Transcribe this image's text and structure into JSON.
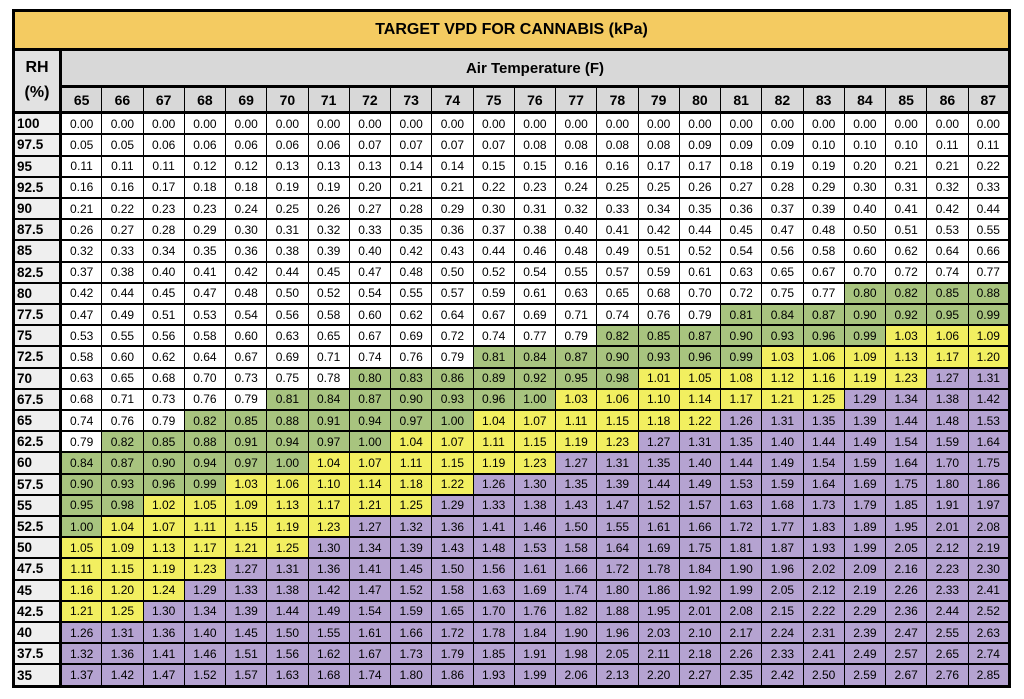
{
  "title": "TARGET VPD FOR CANNABIS (kPa)",
  "rh_header": {
    "line1": "RH",
    "line2": "(%)"
  },
  "col_header": "Air Temperature (F)",
  "colors": {
    "title_bg": "#F4CB61",
    "header_bg": "#D8D8D8",
    "rh_head_bg": "#E2E2E2",
    "rh_col_bg": "#EFEFEF",
    "border": "#000000",
    "text": "#000000",
    "page_bg": "#FFFFFF"
  },
  "chart_data": {
    "type": "heatmap",
    "title": "TARGET VPD FOR CANNABIS (kPa)",
    "xlabel": "Air Temperature (F)",
    "ylabel": "RH (%)",
    "x": [
      65,
      66,
      67,
      68,
      69,
      70,
      71,
      72,
      73,
      74,
      75,
      76,
      77,
      78,
      79,
      80,
      81,
      82,
      83,
      84,
      85,
      86,
      87
    ],
    "color_key": {
      "w": "#FFFFFF",
      "g": "#A8C47F",
      "y": "#F2EF60",
      "p": "#B5A3D1"
    },
    "rows": [
      {
        "rh": "100",
        "values": [
          "0.00",
          "0.00",
          "0.00",
          "0.00",
          "0.00",
          "0.00",
          "0.00",
          "0.00",
          "0.00",
          "0.00",
          "0.00",
          "0.00",
          "0.00",
          "0.00",
          "0.00",
          "0.00",
          "0.00",
          "0.00",
          "0.00",
          "0.00",
          "0.00",
          "0.00",
          "0.00"
        ],
        "colors": "wwwwwwwwwwwwwwwwwwwwwww"
      },
      {
        "rh": "97.5",
        "values": [
          "0.05",
          "0.05",
          "0.06",
          "0.06",
          "0.06",
          "0.06",
          "0.06",
          "0.07",
          "0.07",
          "0.07",
          "0.07",
          "0.08",
          "0.08",
          "0.08",
          "0.08",
          "0.09",
          "0.09",
          "0.09",
          "0.10",
          "0.10",
          "0.10",
          "0.11",
          "0.11"
        ],
        "colors": "wwwwwwwwwwwwwwwwwwwwwww"
      },
      {
        "rh": "95",
        "values": [
          "0.11",
          "0.11",
          "0.11",
          "0.12",
          "0.12",
          "0.13",
          "0.13",
          "0.13",
          "0.14",
          "0.14",
          "0.15",
          "0.15",
          "0.16",
          "0.16",
          "0.17",
          "0.17",
          "0.18",
          "0.19",
          "0.19",
          "0.20",
          "0.21",
          "0.21",
          "0.22"
        ],
        "colors": "wwwwwwwwwwwwwwwwwwwwwww"
      },
      {
        "rh": "92.5",
        "values": [
          "0.16",
          "0.16",
          "0.17",
          "0.18",
          "0.18",
          "0.19",
          "0.19",
          "0.20",
          "0.21",
          "0.21",
          "0.22",
          "0.23",
          "0.24",
          "0.25",
          "0.25",
          "0.26",
          "0.27",
          "0.28",
          "0.29",
          "0.30",
          "0.31",
          "0.32",
          "0.33"
        ],
        "colors": "wwwwwwwwwwwwwwwwwwwwwww"
      },
      {
        "rh": "90",
        "values": [
          "0.21",
          "0.22",
          "0.23",
          "0.23",
          "0.24",
          "0.25",
          "0.26",
          "0.27",
          "0.28",
          "0.29",
          "0.30",
          "0.31",
          "0.32",
          "0.33",
          "0.34",
          "0.35",
          "0.36",
          "0.37",
          "0.39",
          "0.40",
          "0.41",
          "0.42",
          "0.44"
        ],
        "colors": "wwwwwwwwwwwwwwwwwwwwwww"
      },
      {
        "rh": "87.5",
        "values": [
          "0.26",
          "0.27",
          "0.28",
          "0.29",
          "0.30",
          "0.31",
          "0.32",
          "0.33",
          "0.35",
          "0.36",
          "0.37",
          "0.38",
          "0.40",
          "0.41",
          "0.42",
          "0.44",
          "0.45",
          "0.47",
          "0.48",
          "0.50",
          "0.51",
          "0.53",
          "0.55"
        ],
        "colors": "wwwwwwwwwwwwwwwwwwwwwww"
      },
      {
        "rh": "85",
        "values": [
          "0.32",
          "0.33",
          "0.34",
          "0.35",
          "0.36",
          "0.38",
          "0.39",
          "0.40",
          "0.42",
          "0.43",
          "0.44",
          "0.46",
          "0.48",
          "0.49",
          "0.51",
          "0.52",
          "0.54",
          "0.56",
          "0.58",
          "0.60",
          "0.62",
          "0.64",
          "0.66"
        ],
        "colors": "wwwwwwwwwwwwwwwwwwwwwww"
      },
      {
        "rh": "82.5",
        "values": [
          "0.37",
          "0.38",
          "0.40",
          "0.41",
          "0.42",
          "0.44",
          "0.45",
          "0.47",
          "0.48",
          "0.50",
          "0.52",
          "0.54",
          "0.55",
          "0.57",
          "0.59",
          "0.61",
          "0.63",
          "0.65",
          "0.67",
          "0.70",
          "0.72",
          "0.74",
          "0.77"
        ],
        "colors": "wwwwwwwwwwwwwwwwwwwwwww"
      },
      {
        "rh": "80",
        "values": [
          "0.42",
          "0.44",
          "0.45",
          "0.47",
          "0.48",
          "0.50",
          "0.52",
          "0.54",
          "0.55",
          "0.57",
          "0.59",
          "0.61",
          "0.63",
          "0.65",
          "0.68",
          "0.70",
          "0.72",
          "0.75",
          "0.77",
          "0.80",
          "0.82",
          "0.85",
          "0.88"
        ],
        "colors": "wwwwwwwwwwwwwwwwwwwgggg"
      },
      {
        "rh": "77.5",
        "values": [
          "0.47",
          "0.49",
          "0.51",
          "0.53",
          "0.54",
          "0.56",
          "0.58",
          "0.60",
          "0.62",
          "0.64",
          "0.67",
          "0.69",
          "0.71",
          "0.74",
          "0.76",
          "0.79",
          "0.81",
          "0.84",
          "0.87",
          "0.90",
          "0.92",
          "0.95",
          "0.99"
        ],
        "colors": "wwwwwwwwwwwwwwwwggggggg"
      },
      {
        "rh": "75",
        "values": [
          "0.53",
          "0.55",
          "0.56",
          "0.58",
          "0.60",
          "0.63",
          "0.65",
          "0.67",
          "0.69",
          "0.72",
          "0.74",
          "0.77",
          "0.79",
          "0.82",
          "0.85",
          "0.87",
          "0.90",
          "0.93",
          "0.96",
          "0.99",
          "1.03",
          "1.06",
          "1.09"
        ],
        "colors": "wwwwwwwwwwwwwgggggggyyy"
      },
      {
        "rh": "72.5",
        "values": [
          "0.58",
          "0.60",
          "0.62",
          "0.64",
          "0.67",
          "0.69",
          "0.71",
          "0.74",
          "0.76",
          "0.79",
          "0.81",
          "0.84",
          "0.87",
          "0.90",
          "0.93",
          "0.96",
          "0.99",
          "1.03",
          "1.06",
          "1.09",
          "1.13",
          "1.17",
          "1.20"
        ],
        "colors": "wwwwwwwwwwgggggggyyyyyy"
      },
      {
        "rh": "70",
        "values": [
          "0.63",
          "0.65",
          "0.68",
          "0.70",
          "0.73",
          "0.75",
          "0.78",
          "0.80",
          "0.83",
          "0.86",
          "0.89",
          "0.92",
          "0.95",
          "0.98",
          "1.01",
          "1.05",
          "1.08",
          "1.12",
          "1.16",
          "1.19",
          "1.23",
          "1.27",
          "1.31"
        ],
        "colors": "wwwwwwwgggggggyyyyyyypp"
      },
      {
        "rh": "67.5",
        "values": [
          "0.68",
          "0.71",
          "0.73",
          "0.76",
          "0.79",
          "0.81",
          "0.84",
          "0.87",
          "0.90",
          "0.93",
          "0.96",
          "1.00",
          "1.03",
          "1.06",
          "1.10",
          "1.14",
          "1.17",
          "1.21",
          "1.25",
          "1.29",
          "1.34",
          "1.38",
          "1.42"
        ],
        "colors": "wwwwwgggggggyyyyyyypppp"
      },
      {
        "rh": "65",
        "values": [
          "0.74",
          "0.76",
          "0.79",
          "0.82",
          "0.85",
          "0.88",
          "0.91",
          "0.94",
          "0.97",
          "1.00",
          "1.04",
          "1.07",
          "1.11",
          "1.15",
          "1.18",
          "1.22",
          "1.26",
          "1.31",
          "1.35",
          "1.39",
          "1.44",
          "1.48",
          "1.53"
        ],
        "colors": "wwwgggggggyyyyyyppppppp"
      },
      {
        "rh": "62.5",
        "values": [
          "0.79",
          "0.82",
          "0.85",
          "0.88",
          "0.91",
          "0.94",
          "0.97",
          "1.00",
          "1.04",
          "1.07",
          "1.11",
          "1.15",
          "1.19",
          "1.23",
          "1.27",
          "1.31",
          "1.35",
          "1.40",
          "1.44",
          "1.49",
          "1.54",
          "1.59",
          "1.64"
        ],
        "colors": "wgggggggyyyyyyppppppppp"
      },
      {
        "rh": "60",
        "values": [
          "0.84",
          "0.87",
          "0.90",
          "0.94",
          "0.97",
          "1.00",
          "1.04",
          "1.07",
          "1.11",
          "1.15",
          "1.19",
          "1.23",
          "1.27",
          "1.31",
          "1.35",
          "1.40",
          "1.44",
          "1.49",
          "1.54",
          "1.59",
          "1.64",
          "1.70",
          "1.75"
        ],
        "colors": "ggggggyyyyyyppppppppppp"
      },
      {
        "rh": "57.5",
        "values": [
          "0.90",
          "0.93",
          "0.96",
          "0.99",
          "1.03",
          "1.06",
          "1.10",
          "1.14",
          "1.18",
          "1.22",
          "1.26",
          "1.30",
          "1.35",
          "1.39",
          "1.44",
          "1.49",
          "1.53",
          "1.59",
          "1.64",
          "1.69",
          "1.75",
          "1.80",
          "1.86"
        ],
        "colors": "ggggyyyyyyppppppppppppp"
      },
      {
        "rh": "55",
        "values": [
          "0.95",
          "0.98",
          "1.02",
          "1.05",
          "1.09",
          "1.13",
          "1.17",
          "1.21",
          "1.25",
          "1.29",
          "1.33",
          "1.38",
          "1.43",
          "1.47",
          "1.52",
          "1.57",
          "1.63",
          "1.68",
          "1.73",
          "1.79",
          "1.85",
          "1.91",
          "1.97"
        ],
        "colors": "ggyyyyyyypppppppppppppp"
      },
      {
        "rh": "52.5",
        "values": [
          "1.00",
          "1.04",
          "1.07",
          "1.11",
          "1.15",
          "1.19",
          "1.23",
          "1.27",
          "1.32",
          "1.36",
          "1.41",
          "1.46",
          "1.50",
          "1.55",
          "1.61",
          "1.66",
          "1.72",
          "1.77",
          "1.83",
          "1.89",
          "1.95",
          "2.01",
          "2.08"
        ],
        "colors": "gyyyyyypppppppppppppppp"
      },
      {
        "rh": "50",
        "values": [
          "1.05",
          "1.09",
          "1.13",
          "1.17",
          "1.21",
          "1.25",
          "1.30",
          "1.34",
          "1.39",
          "1.43",
          "1.48",
          "1.53",
          "1.58",
          "1.64",
          "1.69",
          "1.75",
          "1.81",
          "1.87",
          "1.93",
          "1.99",
          "2.05",
          "2.12",
          "2.19"
        ],
        "colors": "yyyyyyppppppppppppppppp"
      },
      {
        "rh": "47.5",
        "values": [
          "1.11",
          "1.15",
          "1.19",
          "1.23",
          "1.27",
          "1.31",
          "1.36",
          "1.41",
          "1.45",
          "1.50",
          "1.56",
          "1.61",
          "1.66",
          "1.72",
          "1.78",
          "1.84",
          "1.90",
          "1.96",
          "2.02",
          "2.09",
          "2.16",
          "2.23",
          "2.30"
        ],
        "colors": "yyyyppppppppppppppppppp"
      },
      {
        "rh": "45",
        "values": [
          "1.16",
          "1.20",
          "1.24",
          "1.29",
          "1.33",
          "1.38",
          "1.42",
          "1.47",
          "1.52",
          "1.58",
          "1.63",
          "1.69",
          "1.74",
          "1.80",
          "1.86",
          "1.92",
          "1.99",
          "2.05",
          "2.12",
          "2.19",
          "2.26",
          "2.33",
          "2.41"
        ],
        "colors": "yyypppppppppppppppppppp"
      },
      {
        "rh": "42.5",
        "values": [
          "1.21",
          "1.25",
          "1.30",
          "1.34",
          "1.39",
          "1.44",
          "1.49",
          "1.54",
          "1.59",
          "1.65",
          "1.70",
          "1.76",
          "1.82",
          "1.88",
          "1.95",
          "2.01",
          "2.08",
          "2.15",
          "2.22",
          "2.29",
          "2.36",
          "2.44",
          "2.52"
        ],
        "colors": "yyppppppppppppppppppppp"
      },
      {
        "rh": "40",
        "values": [
          "1.26",
          "1.31",
          "1.36",
          "1.40",
          "1.45",
          "1.50",
          "1.55",
          "1.61",
          "1.66",
          "1.72",
          "1.78",
          "1.84",
          "1.90",
          "1.96",
          "2.03",
          "2.10",
          "2.17",
          "2.24",
          "2.31",
          "2.39",
          "2.47",
          "2.55",
          "2.63"
        ],
        "colors": "ppppppppppppppppppppppp"
      },
      {
        "rh": "37.5",
        "values": [
          "1.32",
          "1.36",
          "1.41",
          "1.46",
          "1.51",
          "1.56",
          "1.62",
          "1.67",
          "1.73",
          "1.79",
          "1.85",
          "1.91",
          "1.98",
          "2.05",
          "2.11",
          "2.18",
          "2.26",
          "2.33",
          "2.41",
          "2.49",
          "2.57",
          "2.65",
          "2.74"
        ],
        "colors": "ppppppppppppppppppppppp"
      },
      {
        "rh": "35",
        "values": [
          "1.37",
          "1.42",
          "1.47",
          "1.52",
          "1.57",
          "1.63",
          "1.68",
          "1.74",
          "1.80",
          "1.86",
          "1.93",
          "1.99",
          "2.06",
          "2.13",
          "2.20",
          "2.27",
          "2.35",
          "2.42",
          "2.50",
          "2.59",
          "2.67",
          "2.76",
          "2.85"
        ],
        "colors": "ppppppppppppppppppppppp"
      }
    ]
  }
}
